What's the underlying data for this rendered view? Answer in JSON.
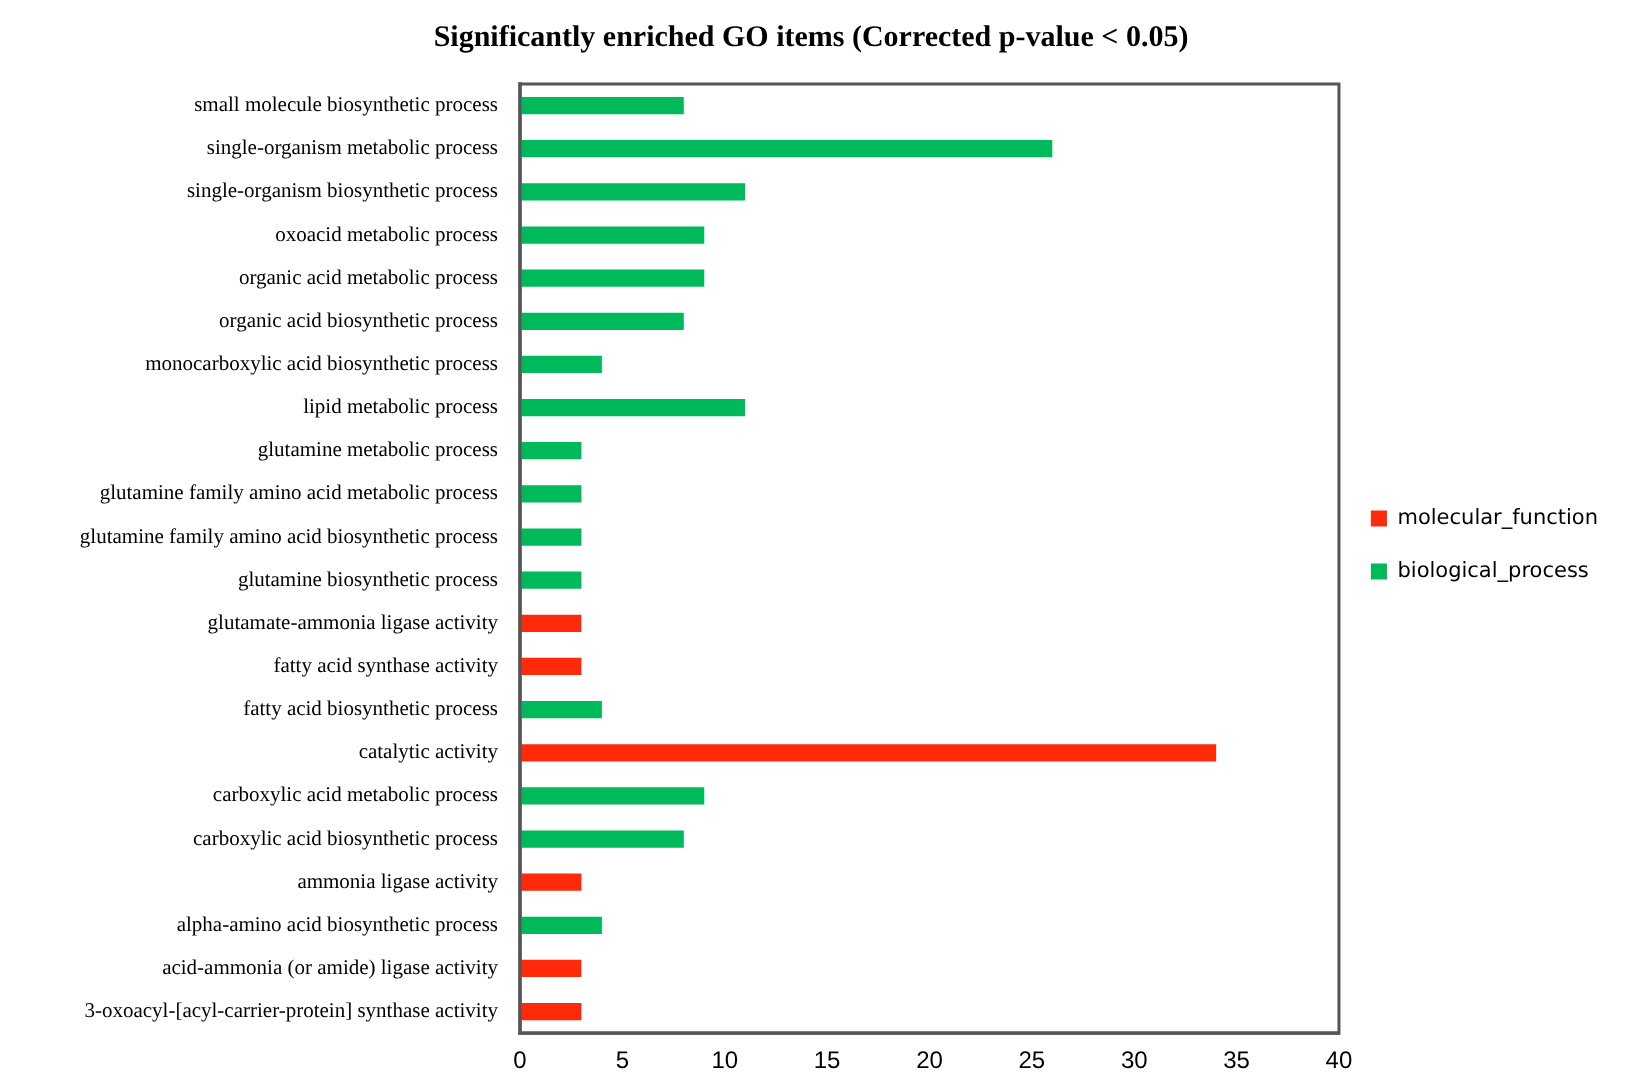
{
  "chart_data": {
    "type": "bar",
    "orientation": "horizontal",
    "stacked": true,
    "title": "Significantly enriched GO items (Corrected p-value < 0.05)",
    "categories": [
      "small molecule biosynthetic process",
      "single-organism metabolic process",
      "single-organism biosynthetic process",
      "oxoacid metabolic process",
      "organic acid metabolic process",
      "organic acid biosynthetic process",
      "monocarboxylic acid biosynthetic process",
      "lipid metabolic process",
      "glutamine metabolic process",
      "glutamine family amino acid metabolic process",
      "glutamine family amino acid biosynthetic process",
      "glutamine biosynthetic process",
      "glutamate-ammonia ligase activity",
      "fatty acid synthase activity",
      "fatty acid biosynthetic process",
      "catalytic activity",
      "carboxylic acid metabolic process",
      "carboxylic acid biosynthetic process",
      "ammonia ligase activity",
      "alpha-amino acid biosynthetic process",
      "acid-ammonia (or amide) ligase activity",
      "3-oxoacyl-[acyl-carrier-protein] synthase activity"
    ],
    "series": [
      {
        "name": "molecular_function",
        "color": "#ff2a0a",
        "values": [
          null,
          null,
          null,
          null,
          null,
          null,
          null,
          null,
          null,
          null,
          null,
          null,
          3,
          3,
          null,
          34,
          null,
          null,
          3,
          null,
          3,
          3
        ]
      },
      {
        "name": "biological_process",
        "color": "#00b95a",
        "values": [
          8,
          26,
          11,
          9,
          9,
          8,
          4,
          11,
          3,
          3,
          3,
          3,
          null,
          null,
          4,
          null,
          9,
          8,
          null,
          4,
          null,
          null
        ]
      }
    ],
    "xlim": [
      0,
      40
    ],
    "xticks": [
      0,
      5,
      10,
      15,
      20,
      25,
      30,
      35,
      40
    ],
    "grid": false,
    "legend": "right"
  }
}
